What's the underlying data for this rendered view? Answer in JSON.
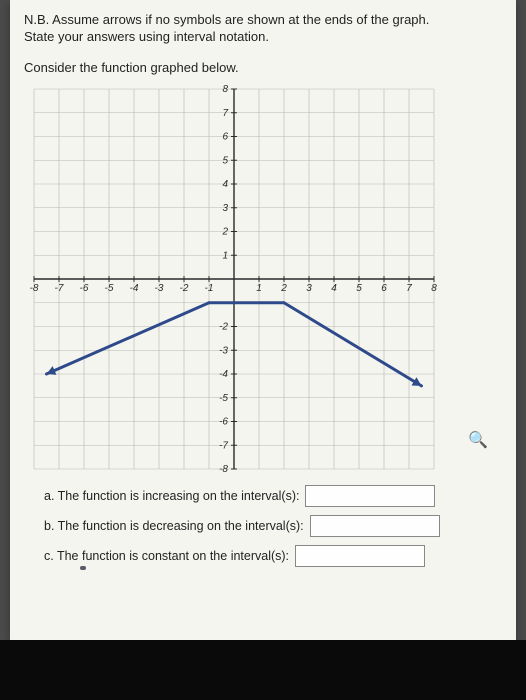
{
  "instruction_line1": "N.B. Assume arrows if no symbols are shown at the ends of the graph.",
  "instruction_line2": "State your answers using interval notation.",
  "consider": "Consider the function graphed below.",
  "chart": {
    "type": "line",
    "xlim": [
      -8,
      8
    ],
    "ylim": [
      -8,
      8
    ],
    "xtick_step": 1,
    "ytick_step": 1,
    "x_labels": [
      "-8",
      "-7",
      "-6",
      "-5",
      "-4",
      "-3",
      "-2",
      "-1",
      "1",
      "2",
      "3",
      "4",
      "5",
      "6",
      "7",
      "8"
    ],
    "y_labels_pos": [
      "1",
      "2",
      "3",
      "4",
      "5",
      "6",
      "7",
      "8"
    ],
    "y_labels_neg": [
      "-2",
      "-3",
      "-4",
      "-5",
      "-6",
      "-7",
      "-8"
    ],
    "grid_color": "#b8b8b0",
    "axis_color": "#2a2a2a",
    "line_color": "#2e4a8a",
    "line_width": 3,
    "tick_font_size": 10,
    "background_color": "#f5f5f0",
    "segments": [
      {
        "from": [
          -7.5,
          -4
        ],
        "to": [
          -1,
          -1
        ],
        "arrow_start": true
      },
      {
        "from": [
          -1,
          -1
        ],
        "to": [
          2,
          -1
        ]
      },
      {
        "from": [
          2,
          -1
        ],
        "to": [
          7.5,
          -4.5
        ],
        "arrow_end": true
      }
    ]
  },
  "questions": {
    "a": "a. The function is increasing on the interval(s):",
    "b": "b. The function is decreasing on the interval(s):",
    "c": "c. The function is constant on the interval(s):"
  },
  "magnifier_icon": "🔍"
}
